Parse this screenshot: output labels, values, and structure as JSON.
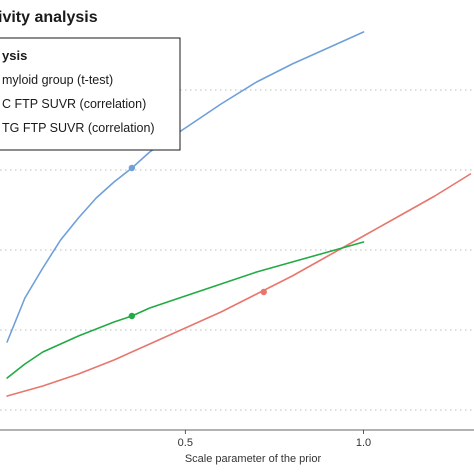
{
  "chart_data": {
    "type": "line",
    "title": "ivity analysis",
    "xlabel": "Scale parameter of the prior",
    "ylabel": "",
    "x_ticks": [
      0.5,
      1.0
    ],
    "x_tick_labels": [
      "0.5",
      "1.0"
    ],
    "xlim": [
      -0.02,
      1.31
    ],
    "ylim": [
      0,
      10
    ],
    "y_gridlines": [
      0.5,
      2.5,
      4.5,
      6.5,
      8.5
    ],
    "grid": true,
    "legend": {
      "title": "ysis",
      "placement": "top-left",
      "entries": [
        "myloid group (t-test)",
        "C FTP SUVR (correlation)",
        "TG FTP SUVR (correlation)"
      ]
    },
    "series": [
      {
        "name": "myloid group (t-test)",
        "color": "#6fa0da",
        "x": [
          0.0,
          0.05,
          0.1,
          0.15,
          0.2,
          0.25,
          0.3,
          0.35,
          0.4,
          0.5,
          0.6,
          0.7,
          0.8,
          0.9,
          1.0
        ],
        "y": [
          2.2,
          3.3,
          4.05,
          4.75,
          5.3,
          5.8,
          6.2,
          6.55,
          6.95,
          7.55,
          8.15,
          8.7,
          9.15,
          9.55,
          9.95
        ],
        "highlight": {
          "x": 0.35,
          "y": 6.55
        }
      },
      {
        "name": "C FTP SUVR (correlation)",
        "color": "#e8766d",
        "x": [
          0.0,
          0.1,
          0.2,
          0.3,
          0.4,
          0.5,
          0.6,
          0.7,
          0.8,
          0.9,
          1.0,
          1.1,
          1.2,
          1.3
        ],
        "y": [
          0.85,
          1.1,
          1.4,
          1.75,
          2.15,
          2.55,
          2.95,
          3.4,
          3.85,
          4.35,
          4.85,
          5.35,
          5.85,
          6.4
        ],
        "highlight": {
          "x": 0.72,
          "y": 3.45
        }
      },
      {
        "name": "TG FTP SUVR (correlation)",
        "color": "#22aa44",
        "x": [
          0.0,
          0.05,
          0.1,
          0.2,
          0.3,
          0.35,
          0.4,
          0.5,
          0.6,
          0.7,
          0.8,
          0.9,
          1.0
        ],
        "y": [
          1.3,
          1.65,
          1.95,
          2.35,
          2.7,
          2.85,
          3.05,
          3.35,
          3.65,
          3.95,
          4.2,
          4.45,
          4.7
        ],
        "highlight": {
          "x": 0.35,
          "y": 2.85
        }
      }
    ]
  }
}
